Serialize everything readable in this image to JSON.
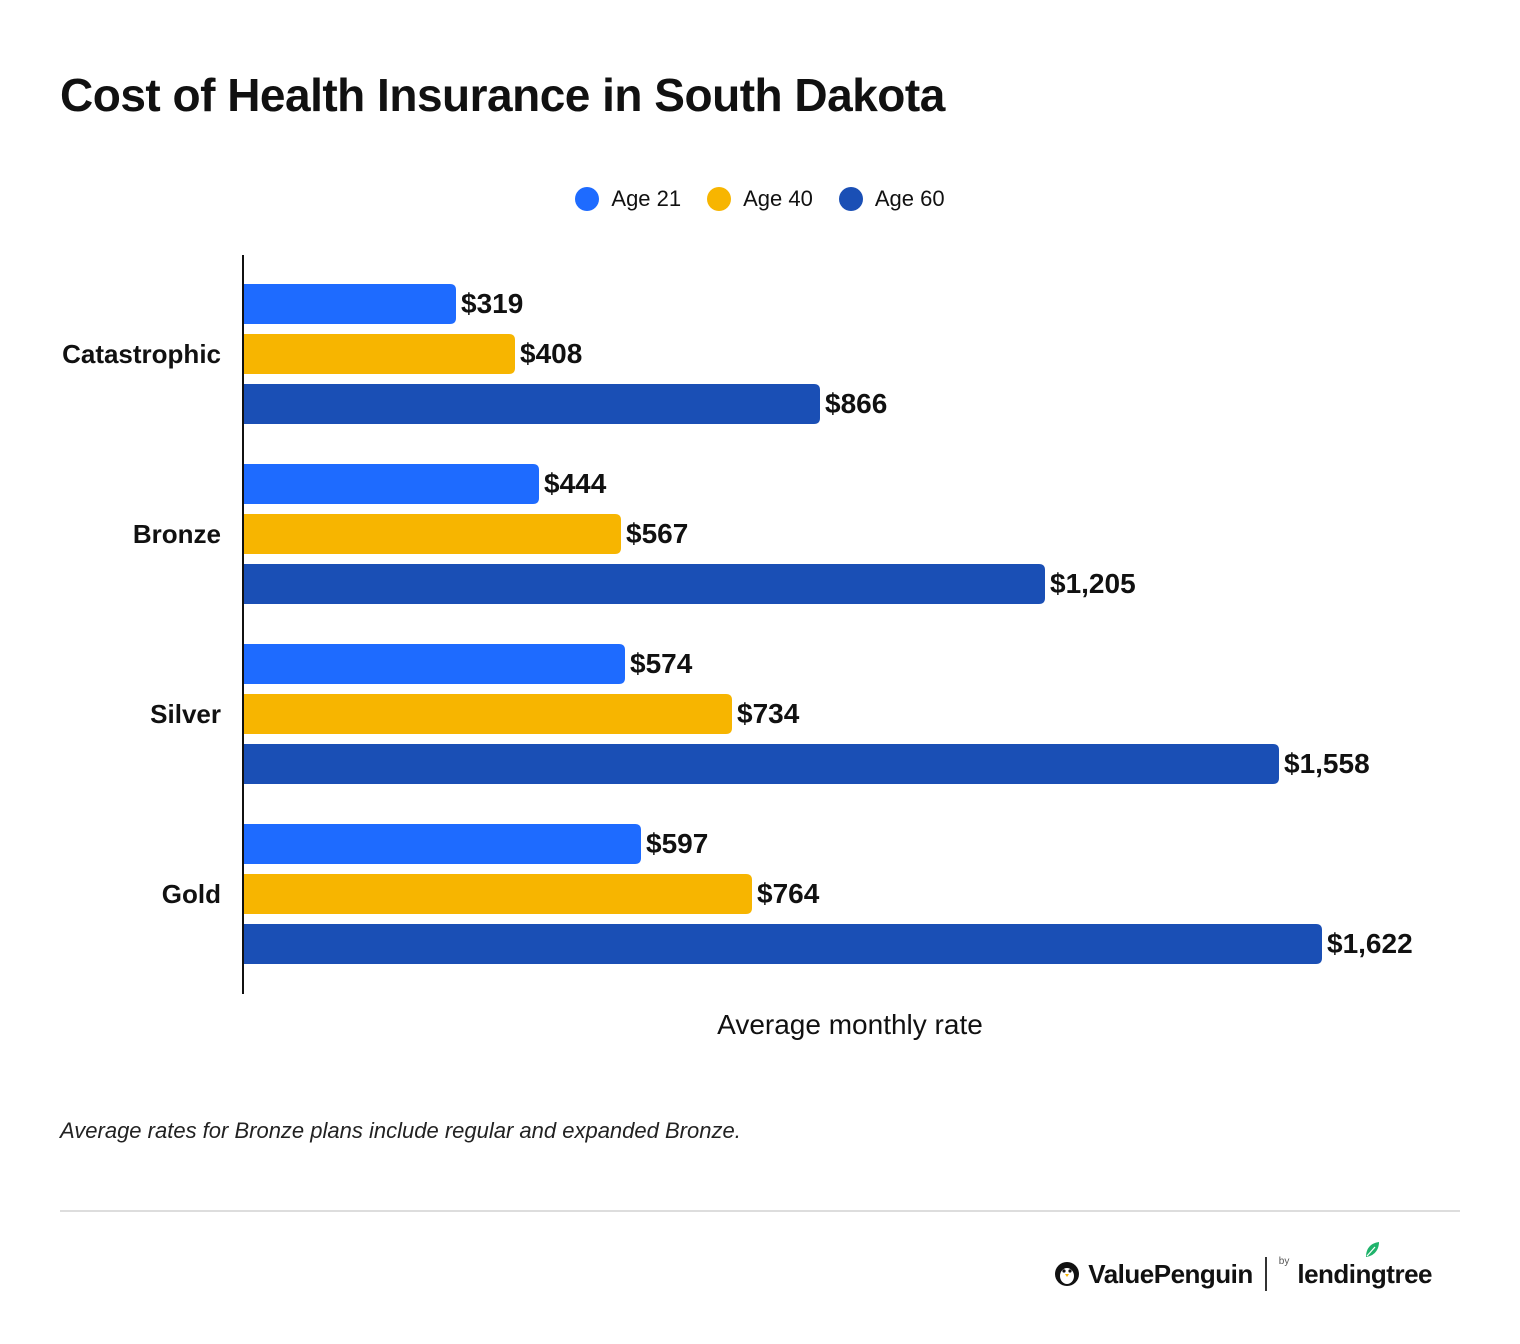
{
  "title": "Cost of Health Insurance in South Dakota",
  "legend": [
    {
      "label": "Age 21",
      "color": "#1E6BFF"
    },
    {
      "label": "Age 40",
      "color": "#F7B500"
    },
    {
      "label": "Age 60",
      "color": "#1A4FB5"
    }
  ],
  "chart_data": {
    "type": "bar",
    "orientation": "horizontal",
    "categories": [
      "Catastrophic",
      "Bronze",
      "Silver",
      "Gold"
    ],
    "series": [
      {
        "name": "Age 21",
        "color": "#1E6BFF",
        "values": [
          319,
          444,
          574,
          597
        ],
        "labels": [
          "$319",
          "$444",
          "$574",
          "$597"
        ]
      },
      {
        "name": "Age 40",
        "color": "#F7B500",
        "values": [
          408,
          567,
          734,
          764
        ],
        "labels": [
          "$408",
          "$567",
          "$734",
          "$764"
        ]
      },
      {
        "name": "Age 60",
        "color": "#1A4FB5",
        "values": [
          866,
          1205,
          1558,
          1622
        ],
        "labels": [
          "$866",
          "$1,205",
          "$1,558",
          "$1,622"
        ]
      }
    ],
    "xlabel": "Average monthly rate",
    "xlim": [
      0,
      1622
    ],
    "grid": false,
    "legend_position": "top-center"
  },
  "footnote": "Average rates for Bronze plans include regular and expanded Bronze.",
  "brand": {
    "name": "ValuePenguin",
    "by": "by",
    "partner": "lendingtree",
    "icons": [
      "penguin-icon",
      "leaf-icon"
    ]
  }
}
